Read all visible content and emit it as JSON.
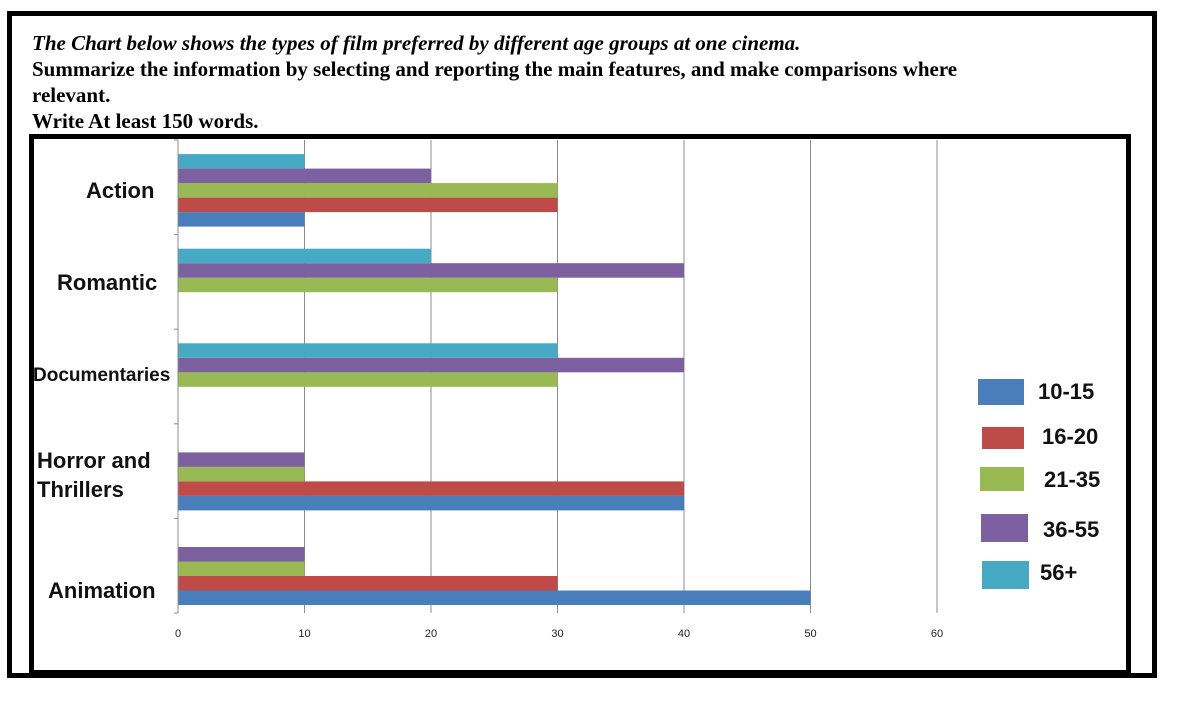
{
  "prompt": {
    "line1": "The Chart below shows the types of film preferred by different age groups at one cinema.",
    "line2": "Summarize the information by selecting and reporting the main features, and make comparisons where",
    "line3": "relevant.",
    "line4": "Write At least 150 words."
  },
  "chart_data": {
    "type": "bar",
    "orientation": "horizontal",
    "categories": [
      "Action",
      "Romantic",
      "Documentaries",
      "Horror and Thrillers",
      "Animation"
    ],
    "series": [
      {
        "name": "10-15",
        "color": "#4a7ebb",
        "values": [
          10,
          0,
          0,
          40,
          50
        ]
      },
      {
        "name": "16-20",
        "color": "#be4b48",
        "values": [
          30,
          0,
          0,
          40,
          30
        ]
      },
      {
        "name": "21-35",
        "color": "#98b954",
        "values": [
          30,
          30,
          30,
          10,
          10
        ]
      },
      {
        "name": "36-55",
        "color": "#7d60a0",
        "values": [
          20,
          40,
          40,
          10,
          10
        ]
      },
      {
        "name": "56+",
        "color": "#46aac5",
        "values": [
          10,
          20,
          30,
          0,
          0
        ]
      }
    ],
    "xticks": [
      0,
      10,
      20,
      30,
      40,
      50,
      60
    ],
    "xlim": [
      0,
      60
    ],
    "grid": true,
    "legend": "right",
    "xlabel": "",
    "ylabel": ""
  }
}
